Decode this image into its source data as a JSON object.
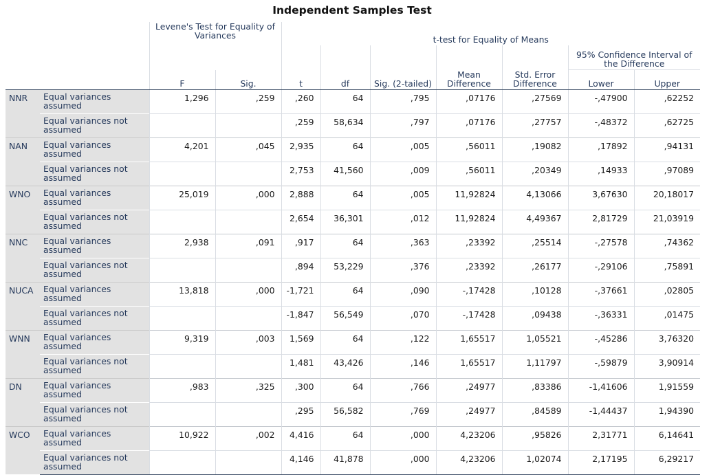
{
  "title": "Independent Samples Test",
  "header": {
    "levene": "Levene's Test for Equality of Variances",
    "ttest": "t-test for Equality of Means",
    "ci": "95% Confidence Interval of the Difference",
    "cols": [
      "F",
      "Sig.",
      "t",
      "df",
      "Sig. (2-tailed)",
      "Mean Difference",
      "Std. Error Difference",
      "Lower",
      "Upper"
    ]
  },
  "labels": {
    "assumed": "Equal variances assumed",
    "not_assumed": "Equal variances not assumed"
  },
  "rows": [
    {
      "var": "NNR",
      "assumed": {
        "F": "1,296",
        "sig": ",259",
        "t": ",260",
        "df": "64",
        "sig2": ",795",
        "md": ",07176",
        "se": ",27569",
        "lower": "-,47900",
        "upper": ",62252"
      },
      "not_assumed": {
        "t": ",259",
        "df": "58,634",
        "sig2": ",797",
        "md": ",07176",
        "se": ",27757",
        "lower": "-,48372",
        "upper": ",62725"
      }
    },
    {
      "var": "NAN",
      "assumed": {
        "F": "4,201",
        "sig": ",045",
        "t": "2,935",
        "df": "64",
        "sig2": ",005",
        "md": ",56011",
        "se": ",19082",
        "lower": ",17892",
        "upper": ",94131"
      },
      "not_assumed": {
        "t": "2,753",
        "df": "41,560",
        "sig2": ",009",
        "md": ",56011",
        "se": ",20349",
        "lower": ",14933",
        "upper": ",97089"
      }
    },
    {
      "var": "WNO",
      "assumed": {
        "F": "25,019",
        "sig": ",000",
        "t": "2,888",
        "df": "64",
        "sig2": ",005",
        "md": "11,92824",
        "se": "4,13066",
        "lower": "3,67630",
        "upper": "20,18017"
      },
      "not_assumed": {
        "t": "2,654",
        "df": "36,301",
        "sig2": ",012",
        "md": "11,92824",
        "se": "4,49367",
        "lower": "2,81729",
        "upper": "21,03919"
      }
    },
    {
      "var": "NNC",
      "assumed": {
        "F": "2,938",
        "sig": ",091",
        "t": ",917",
        "df": "64",
        "sig2": ",363",
        "md": ",23392",
        "se": ",25514",
        "lower": "-,27578",
        "upper": ",74362"
      },
      "not_assumed": {
        "t": ",894",
        "df": "53,229",
        "sig2": ",376",
        "md": ",23392",
        "se": ",26177",
        "lower": "-,29106",
        "upper": ",75891"
      }
    },
    {
      "var": "NUCA",
      "assumed": {
        "F": "13,818",
        "sig": ",000",
        "t": "-1,721",
        "df": "64",
        "sig2": ",090",
        "md": "-,17428",
        "se": ",10128",
        "lower": "-,37661",
        "upper": ",02805"
      },
      "not_assumed": {
        "t": "-1,847",
        "df": "56,549",
        "sig2": ",070",
        "md": "-,17428",
        "se": ",09438",
        "lower": "-,36331",
        "upper": ",01475"
      }
    },
    {
      "var": "WNN",
      "assumed": {
        "F": "9,319",
        "sig": ",003",
        "t": "1,569",
        "df": "64",
        "sig2": ",122",
        "md": "1,65517",
        "se": "1,05521",
        "lower": "-,45286",
        "upper": "3,76320"
      },
      "not_assumed": {
        "t": "1,481",
        "df": "43,426",
        "sig2": ",146",
        "md": "1,65517",
        "se": "1,11797",
        "lower": "-,59879",
        "upper": "3,90914"
      }
    },
    {
      "var": "DN",
      "assumed": {
        "F": ",983",
        "sig": ",325",
        "t": ",300",
        "df": "64",
        "sig2": ",766",
        "md": ",24977",
        "se": ",83386",
        "lower": "-1,41606",
        "upper": "1,91559"
      },
      "not_assumed": {
        "t": ",295",
        "df": "56,582",
        "sig2": ",769",
        "md": ",24977",
        "se": ",84589",
        "lower": "-1,44437",
        "upper": "1,94390"
      }
    },
    {
      "var": "WCO",
      "assumed": {
        "F": "10,922",
        "sig": ",002",
        "t": "4,416",
        "df": "64",
        "sig2": ",000",
        "md": "4,23206",
        "se": ",95826",
        "lower": "2,31771",
        "upper": "6,14641"
      },
      "not_assumed": {
        "t": "4,146",
        "df": "41,878",
        "sig2": ",000",
        "md": "4,23206",
        "se": "1,02074",
        "lower": "2,17195",
        "upper": "6,29217"
      }
    }
  ]
}
